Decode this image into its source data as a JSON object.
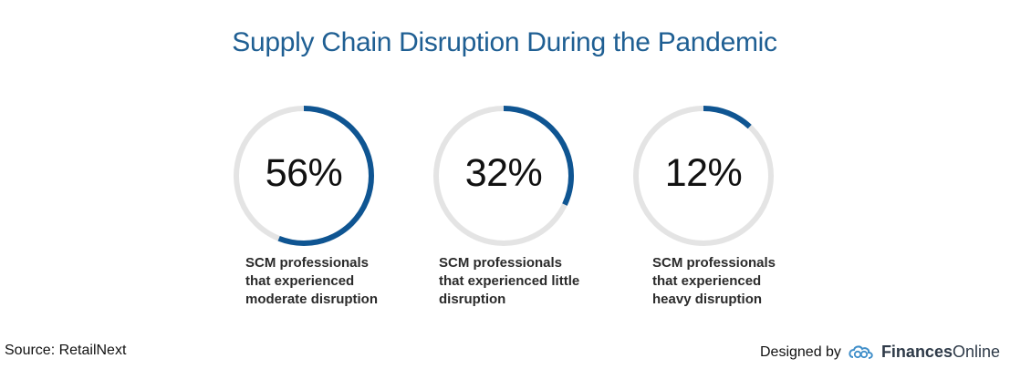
{
  "title": "Supply Chain Disruption During the Pandemic",
  "chart_data": {
    "type": "donut",
    "title": "Supply Chain Disruption During the Pandemic",
    "unit": "%",
    "series": [
      {
        "value": 56,
        "label": "56%",
        "description": [
          "SCM professionals",
          "that experienced",
          "moderate disruption"
        ]
      },
      {
        "value": 32,
        "label": "32%",
        "description": [
          "SCM professionals",
          "that experienced little",
          "disruption"
        ]
      },
      {
        "value": 12,
        "label": "12%",
        "description": [
          "SCM professionals",
          "that experienced",
          "heavy disruption"
        ]
      }
    ],
    "colors": {
      "fill": "#0f5592",
      "track": "#e4e4e4"
    }
  },
  "footer": {
    "source": "Source: RetailNext",
    "designed_by": "Designed by",
    "brand_bold": "Finances",
    "brand_light": "Online"
  }
}
